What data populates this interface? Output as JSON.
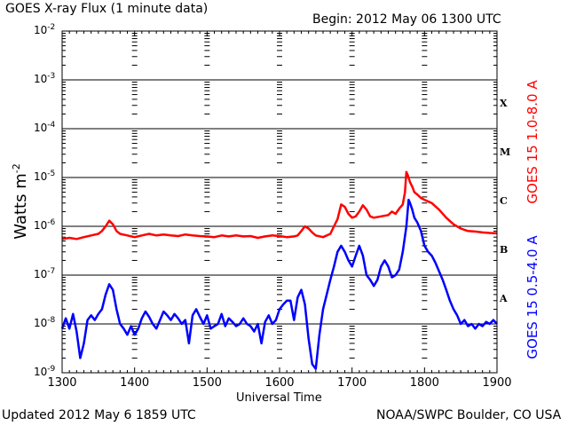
{
  "header": {
    "title": "GOES X-ray Flux (1 minute data)",
    "begin": "Begin: 2012 May 06 1300 UTC"
  },
  "footer": {
    "updated": "Updated 2012 May  6 1859 UTC",
    "credit": "NOAA/SWPC Boulder, CO USA"
  },
  "colors": {
    "long_channel": "#ff0000",
    "short_channel": "#0000ff",
    "grid": "#000000"
  },
  "chart_data": {
    "type": "line",
    "xlabel": "Universal Time",
    "ylabel": "Watts m",
    "ylabel_superscript": "-2",
    "y_scale": "log",
    "xlim": [
      1300,
      1900
    ],
    "ylim": [
      1e-09,
      0.01
    ],
    "x_ticks": [
      "1300",
      "1400",
      "1500",
      "1600",
      "1700",
      "1800",
      "1900"
    ],
    "y_ticks": [
      {
        "base": "10",
        "exp": "-2"
      },
      {
        "base": "10",
        "exp": "-3"
      },
      {
        "base": "10",
        "exp": "-4"
      },
      {
        "base": "10",
        "exp": "-5"
      },
      {
        "base": "10",
        "exp": "-6"
      },
      {
        "base": "10",
        "exp": "-7"
      },
      {
        "base": "10",
        "exp": "-8"
      },
      {
        "base": "10",
        "exp": "-9"
      }
    ],
    "flare_classes": [
      "X",
      "M",
      "C",
      "B",
      "A"
    ],
    "grid": true,
    "series": [
      {
        "name": "GOES 15 1.0-8.0 A",
        "color": "#ff0000",
        "x": [
          1300,
          1310,
          1320,
          1330,
          1340,
          1350,
          1355,
          1360,
          1365,
          1370,
          1375,
          1380,
          1390,
          1400,
          1410,
          1420,
          1430,
          1440,
          1450,
          1460,
          1470,
          1480,
          1490,
          1500,
          1510,
          1520,
          1530,
          1540,
          1550,
          1560,
          1570,
          1580,
          1590,
          1600,
          1610,
          1620,
          1625,
          1630,
          1635,
          1640,
          1645,
          1650,
          1660,
          1670,
          1675,
          1680,
          1685,
          1690,
          1695,
          1700,
          1705,
          1710,
          1715,
          1720,
          1725,
          1730,
          1740,
          1750,
          1755,
          1760,
          1765,
          1770,
          1773,
          1775,
          1777,
          1780,
          1783,
          1786,
          1790,
          1795,
          1800,
          1810,
          1820,
          1830,
          1840,
          1850,
          1860,
          1870,
          1880,
          1890,
          1900
        ],
        "values": [
          5.5e-07,
          5.8e-07,
          5.5e-07,
          6e-07,
          6.5e-07,
          7e-07,
          8e-07,
          1e-06,
          1.3e-06,
          1.1e-06,
          8e-07,
          7e-07,
          6.5e-07,
          6e-07,
          6.5e-07,
          7e-07,
          6.5e-07,
          6.8e-07,
          6.5e-07,
          6.3e-07,
          6.8e-07,
          6.5e-07,
          6.3e-07,
          6.2e-07,
          6e-07,
          6.5e-07,
          6.2e-07,
          6.5e-07,
          6.2e-07,
          6.3e-07,
          5.8e-07,
          6.2e-07,
          6.5e-07,
          6.3e-07,
          6e-07,
          6.2e-07,
          6.5e-07,
          8e-07,
          1e-06,
          9e-07,
          7.5e-07,
          6.5e-07,
          6e-07,
          7e-07,
          1e-06,
          1.4e-06,
          2.8e-06,
          2.5e-06,
          1.8e-06,
          1.5e-06,
          1.6e-06,
          2e-06,
          2.7e-06,
          2.2e-06,
          1.6e-06,
          1.5e-06,
          1.6e-06,
          1.7e-06,
          2e-06,
          1.8e-06,
          2.3e-06,
          2.8e-06,
          5e-06,
          1.3e-05,
          1.1e-05,
          8e-06,
          6.5e-06,
          5e-06,
          4.5e-06,
          3.8e-06,
          3.5e-06,
          3e-06,
          2.2e-06,
          1.5e-06,
          1.1e-06,
          9e-07,
          8e-07,
          7.8e-07,
          7.5e-07,
          7.3e-07,
          7.2e-07
        ]
      },
      {
        "name": "GOES 15 0.5-4.0 A",
        "color": "#0000ff",
        "x": [
          1300,
          1305,
          1310,
          1315,
          1320,
          1325,
          1330,
          1335,
          1340,
          1345,
          1350,
          1355,
          1360,
          1365,
          1370,
          1375,
          1380,
          1385,
          1390,
          1395,
          1400,
          1405,
          1410,
          1415,
          1420,
          1425,
          1430,
          1435,
          1440,
          1445,
          1450,
          1455,
          1460,
          1465,
          1470,
          1475,
          1480,
          1485,
          1490,
          1495,
          1500,
          1505,
          1510,
          1515,
          1520,
          1525,
          1530,
          1535,
          1540,
          1545,
          1550,
          1555,
          1560,
          1565,
          1570,
          1575,
          1580,
          1585,
          1590,
          1595,
          1600,
          1605,
          1610,
          1615,
          1620,
          1625,
          1630,
          1635,
          1640,
          1645,
          1650,
          1655,
          1660,
          1665,
          1670,
          1675,
          1680,
          1685,
          1690,
          1695,
          1700,
          1705,
          1710,
          1715,
          1720,
          1725,
          1730,
          1735,
          1740,
          1745,
          1750,
          1755,
          1760,
          1765,
          1770,
          1775,
          1778,
          1780,
          1783,
          1786,
          1790,
          1795,
          1800,
          1805,
          1810,
          1815,
          1820,
          1825,
          1830,
          1835,
          1840,
          1845,
          1850,
          1855,
          1860,
          1865,
          1870,
          1875,
          1880,
          1885,
          1890,
          1895,
          1900
        ],
        "values": [
          8e-09,
          1.3e-08,
          8e-09,
          1.6e-08,
          7e-09,
          2e-09,
          4e-09,
          1.2e-08,
          1.5e-08,
          1.2e-08,
          1.6e-08,
          2e-08,
          4e-08,
          6.5e-08,
          5e-08,
          2e-08,
          1e-08,
          8e-09,
          6e-09,
          9e-09,
          6e-09,
          8e-09,
          1.3e-08,
          1.8e-08,
          1.4e-08,
          1e-08,
          8e-09,
          1.2e-08,
          1.8e-08,
          1.5e-08,
          1.2e-08,
          1.6e-08,
          1.3e-08,
          1e-08,
          1.2e-08,
          4e-09,
          1.5e-08,
          2e-08,
          1.4e-08,
          1e-08,
          1.5e-08,
          8e-09,
          9e-09,
          1e-08,
          1.6e-08,
          9e-09,
          1.3e-08,
          1.1e-08,
          9e-09,
          1e-08,
          1.3e-08,
          1e-08,
          9e-09,
          7e-09,
          1e-08,
          4e-09,
          1.1e-08,
          1.5e-08,
          1e-08,
          1.2e-08,
          2e-08,
          2.5e-08,
          3e-08,
          3e-08,
          1.2e-08,
          3.5e-08,
          5e-08,
          2.5e-08,
          5e-09,
          1.5e-09,
          1.2e-09,
          6e-09,
          2e-08,
          4e-08,
          8e-08,
          1.5e-07,
          3e-07,
          4e-07,
          3e-07,
          2e-07,
          1.5e-07,
          2.5e-07,
          4e-07,
          2.5e-07,
          1e-07,
          8e-08,
          6e-08,
          8e-08,
          1.5e-07,
          2e-07,
          1.5e-07,
          9e-08,
          1e-07,
          1.3e-07,
          3e-07,
          1e-06,
          3.5e-06,
          3e-06,
          2.2e-06,
          1.5e-06,
          1.2e-06,
          8e-07,
          4e-07,
          3e-07,
          2.5e-07,
          1.8e-07,
          1.2e-07,
          8e-08,
          5e-08,
          3e-08,
          2e-08,
          1.5e-08,
          1e-08,
          1.2e-08,
          9e-09,
          1e-08,
          8e-09,
          1e-08,
          9e-09,
          1.1e-08,
          1e-08,
          1.2e-08,
          1e-08
        ]
      }
    ]
  }
}
